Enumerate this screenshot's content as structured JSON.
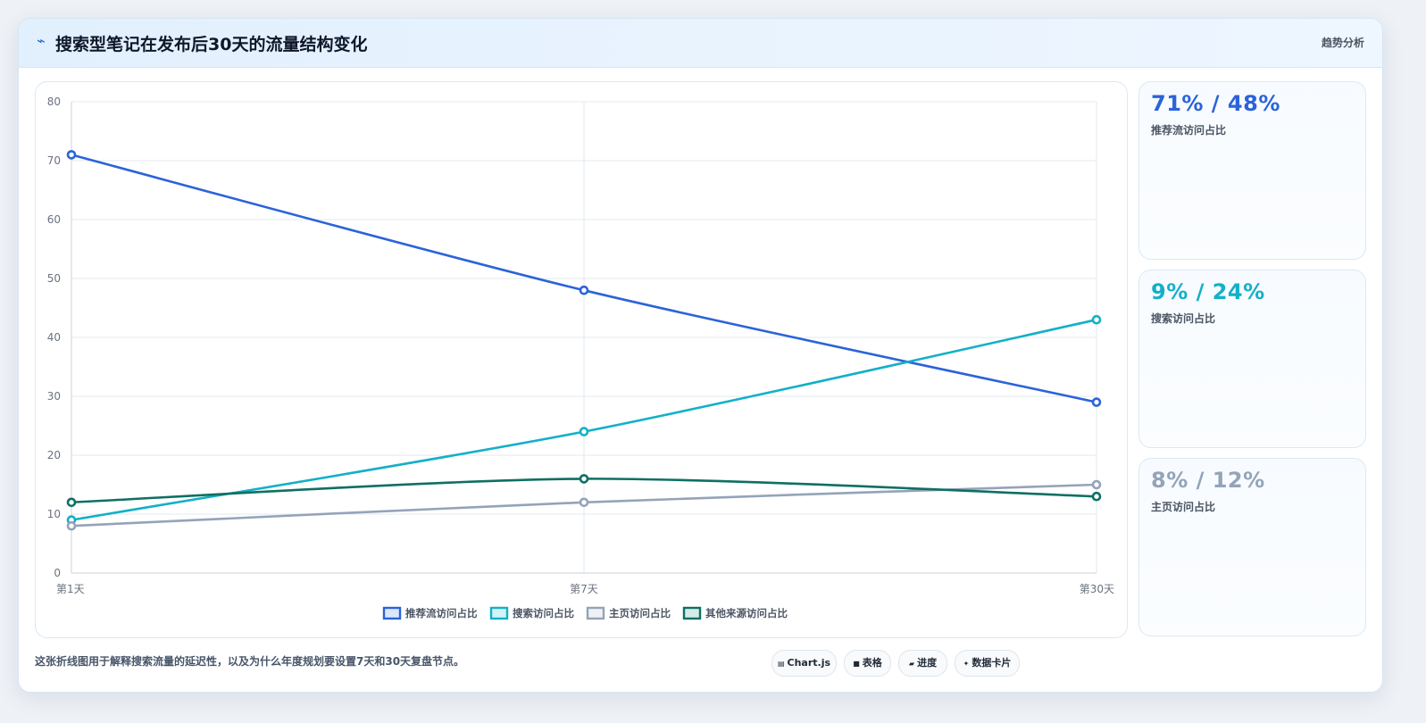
{
  "header": {
    "icon": "trend-icon",
    "title": "搜索型笔记在发布后30天的流量结构变化",
    "badge": "趋势分析"
  },
  "chart_data": {
    "type": "line",
    "categories": [
      "第1天",
      "第7天",
      "第30天"
    ],
    "ylim": [
      0,
      80
    ],
    "yticks": [
      0,
      10,
      20,
      30,
      40,
      50,
      60,
      70,
      80
    ],
    "grid": true,
    "legend_position": "bottom",
    "series": [
      {
        "name": "推荐流访问占比",
        "values": [
          71,
          48,
          29
        ],
        "color": "#2b63d9",
        "fill": "#dbe7fb"
      },
      {
        "name": "搜索访问占比",
        "values": [
          9,
          24,
          43
        ],
        "color": "#13b0c8",
        "fill": "#d3f3f7"
      },
      {
        "name": "主页访问占比",
        "values": [
          8,
          12,
          15
        ],
        "color": "#94a3b8",
        "fill": "#eef1f5"
      },
      {
        "name": "其他来源访问占比",
        "values": [
          12,
          16,
          13
        ],
        "color": "#0f6f63",
        "fill": "#d4ece8"
      }
    ]
  },
  "stats": [
    {
      "value": "71% / 48%",
      "label": "推荐流访问占比",
      "color": "#2b63d9"
    },
    {
      "value": "9% / 24%",
      "label": "搜索访问占比",
      "color": "#13b0c8"
    },
    {
      "value": "8% / 12%",
      "label": "主页访问占比",
      "color": "#94a3b8"
    }
  ],
  "footnote": "这张折线图用于解释搜索流量的延迟性，以及为什么年度规划要设置7天和30天复盘节点。",
  "chips": [
    {
      "icon": "chart-icon",
      "glyph": "▤",
      "label": "Chart.js"
    },
    {
      "icon": "table-icon",
      "glyph": "■",
      "label": "表格"
    },
    {
      "icon": "progress-icon",
      "glyph": "▰",
      "label": "进度"
    },
    {
      "icon": "sparkle-icon",
      "glyph": "✦",
      "label": "数据卡片"
    }
  ]
}
